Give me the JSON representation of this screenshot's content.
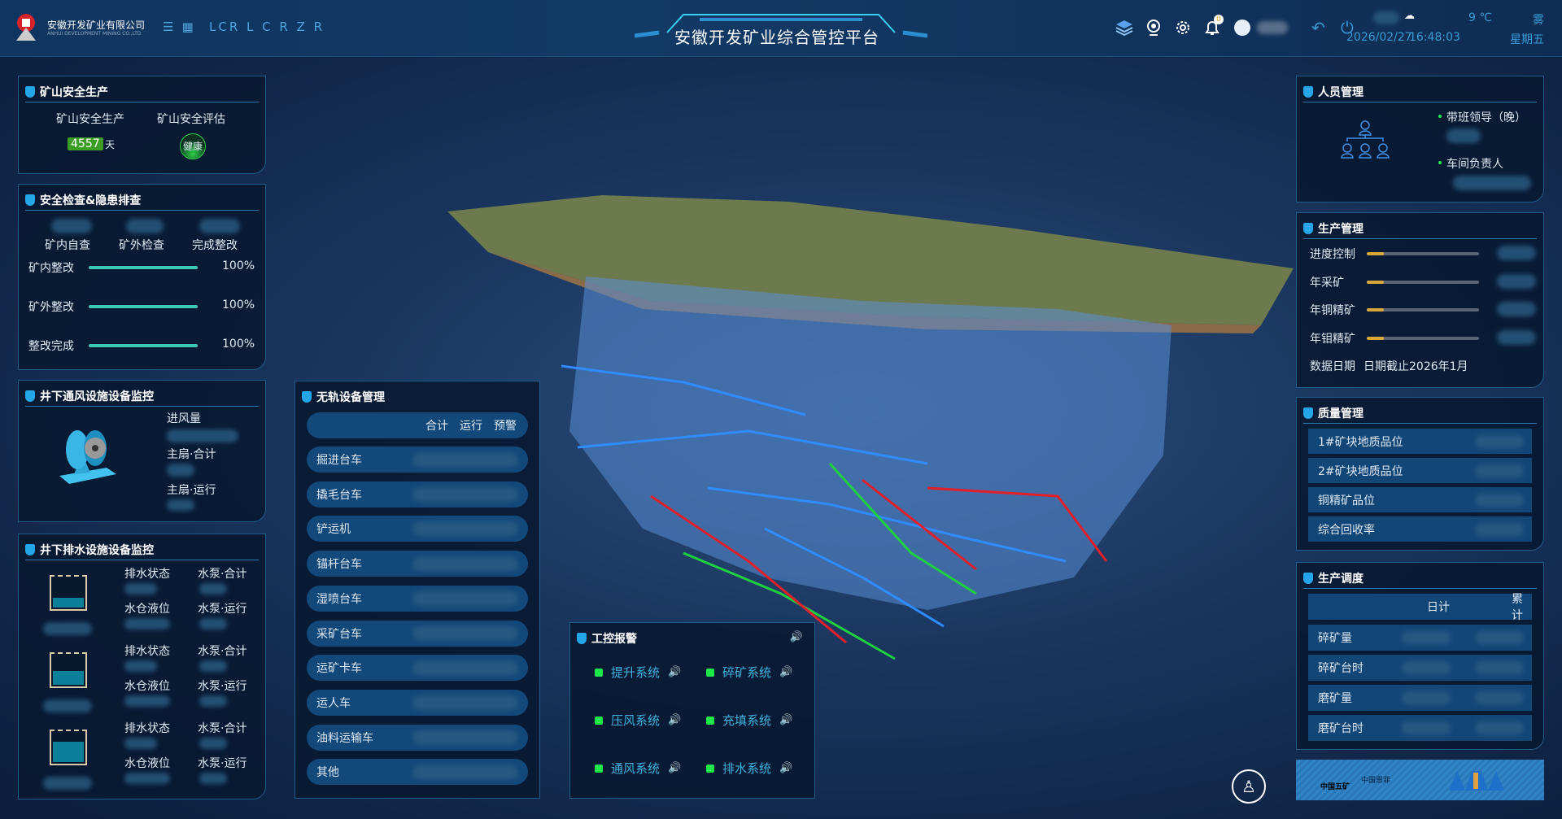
{
  "header": {
    "company_cn": "安徽开发矿业有限公司",
    "company_en": "ANHUI DEVELOPMENT MINING CO.,LTD",
    "brand": "LCR L C R Z R",
    "title": "安徽开发矿业综合管控平台",
    "notification_count": "0",
    "date": "2026/02/27",
    "time": "16:48:03",
    "temperature": "9 ℃",
    "weather": "雾",
    "weekday": "星期五",
    "icons": [
      "menu-icon",
      "grid-icon",
      "layers-icon",
      "camera-icon",
      "gear-icon",
      "bell-icon",
      "avatar",
      "undo-icon",
      "power-icon",
      "cloud-icon"
    ]
  },
  "safety": {
    "title": "矿山安全生产",
    "col1": "矿山安全生产",
    "col2": "矿山安全评估",
    "days": "4557",
    "days_unit": "天",
    "status": "健康"
  },
  "inspection": {
    "title": "安全检查&隐患排查",
    "cols": [
      "矿内自查",
      "矿外检查",
      "完成整改"
    ],
    "bars": [
      {
        "label": "矿内整改",
        "value": "100%",
        "fraction": 1.0
      },
      {
        "label": "矿外整改",
        "value": "100%",
        "fraction": 1.0
      },
      {
        "label": "整改完成",
        "value": "100%",
        "fraction": 1.0
      }
    ]
  },
  "ventilation": {
    "title": "井下通风设施设备监控",
    "labels": [
      "进风量",
      "主扇·合计",
      "主扇·运行"
    ]
  },
  "drainage": {
    "title": "井下排水设施设备监控",
    "groups": [
      {
        "level": 0.3,
        "labels": [
          "排水状态",
          "水泵·合计",
          "水仓液位",
          "水泵·运行"
        ]
      },
      {
        "level": 0.42,
        "labels": [
          "排水状态",
          "水泵·合计",
          "水仓液位",
          "水泵·运行"
        ]
      },
      {
        "level": 0.62,
        "labels": [
          "排水状态",
          "水泵·合计",
          "水仓液位",
          "水泵·运行"
        ]
      }
    ]
  },
  "trackless": {
    "title": "无轨设备管理",
    "headers": [
      "合计",
      "运行",
      "预警"
    ],
    "items": [
      "掘进台车",
      "撬毛台车",
      "铲运机",
      "锚杆台车",
      "湿喷台车",
      "采矿台车",
      "运矿卡车",
      "运人车",
      "油料运输车",
      "其他"
    ]
  },
  "alarm": {
    "title": "工控报警",
    "items": [
      "提升系统",
      "碎矿系统",
      "压风系统",
      "充填系统",
      "通风系统",
      "排水系统"
    ],
    "status_color": "#1de84a"
  },
  "personnel": {
    "title": "人员管理",
    "items": [
      "带班领导（晚）",
      "车间负责人"
    ]
  },
  "production": {
    "title": "生产管理",
    "bars": [
      {
        "label": "进度控制",
        "fraction": 0.15
      },
      {
        "label": "年采矿",
        "fraction": 0.15
      },
      {
        "label": "年铜精矿",
        "fraction": 0.15
      },
      {
        "label": "年钼精矿",
        "fraction": 0.15
      }
    ],
    "date_label": "数据日期",
    "date_value": "日期截止2026年1月"
  },
  "quality": {
    "title": "质量管理",
    "items": [
      "1#矿块地质品位",
      "2#矿块地质品位",
      "铜精矿品位",
      "综合回收率"
    ]
  },
  "dispatch": {
    "title": "生产调度",
    "headers": [
      "日计",
      "累计"
    ],
    "items": [
      "碎矿量",
      "碎矿台时",
      "磨矿量",
      "磨矿台时"
    ]
  },
  "partners": {
    "logos": [
      "中国五矿",
      "中国恩菲",
      "MM"
    ]
  }
}
